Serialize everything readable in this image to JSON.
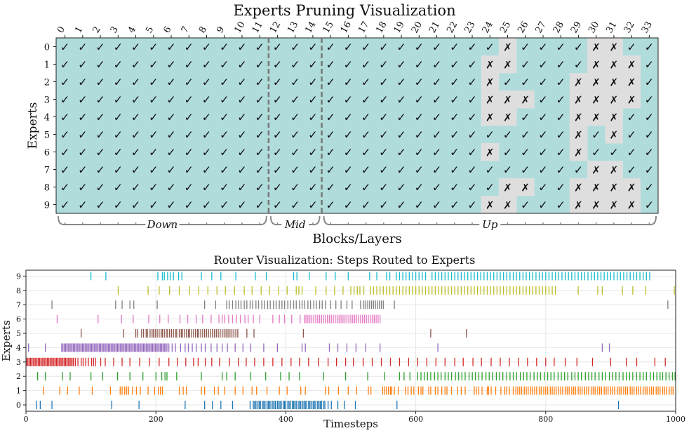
{
  "chart_data": [
    {
      "type": "heatmap",
      "title": "Experts Pruning Visualization",
      "xlabel": "Blocks/Layers",
      "ylabel": "Experts",
      "x": [
        0,
        1,
        2,
        3,
        4,
        5,
        6,
        7,
        8,
        9,
        10,
        11,
        12,
        13,
        14,
        15,
        16,
        17,
        18,
        19,
        20,
        21,
        22,
        23,
        24,
        25,
        26,
        27,
        28,
        29,
        30,
        31,
        32,
        33
      ],
      "y": [
        0,
        1,
        2,
        3,
        4,
        5,
        6,
        7,
        8,
        9
      ],
      "kept_symbol": "✓",
      "pruned_symbol": "✗",
      "groups": [
        {
          "label": "Down",
          "start": 0,
          "end": 11
        },
        {
          "label": "Mid",
          "start": 12,
          "end": 14
        },
        {
          "label": "Up",
          "start": 15,
          "end": 33
        }
      ],
      "pruned": [
        [
          25,
          30,
          31
        ],
        [
          24,
          25,
          30,
          31,
          32
        ],
        [
          24,
          29,
          30,
          31,
          32
        ],
        [
          24,
          25,
          26,
          29,
          30,
          31,
          32
        ],
        [
          24,
          25,
          29,
          30,
          31
        ],
        [
          29,
          31
        ],
        [
          24,
          29
        ],
        [
          30,
          31
        ],
        [
          25,
          26,
          29,
          30,
          31,
          32
        ],
        [
          24,
          25,
          29,
          30,
          31,
          32
        ]
      ],
      "colors": {
        "kept": "#b0dcdc",
        "pruned": "#dedede"
      }
    },
    {
      "type": "scatter",
      "marker": "vertical-line",
      "title": "Router Visualization: Steps Routed to Experts",
      "xlabel": "Timesteps",
      "ylabel": "Experts",
      "xlim": [
        0,
        1000
      ],
      "xticks": [
        0,
        200,
        400,
        600,
        800,
        1000
      ],
      "yticks": [
        0,
        1,
        2,
        3,
        4,
        5,
        6,
        7,
        8,
        9
      ],
      "grid": true,
      "series": [
        {
          "expert": 0,
          "color": "#1f77b4",
          "x": [
            16,
            22,
            40,
            132,
            174,
            245,
            275,
            287,
            300,
            318,
            345,
            350,
            352,
            354,
            357,
            359,
            361,
            364,
            366,
            368,
            371,
            373,
            375,
            377,
            380,
            382,
            384,
            387,
            389,
            391,
            393,
            396,
            398,
            400,
            403,
            405,
            407,
            410,
            412,
            414,
            416,
            419,
            421,
            423,
            426,
            428,
            430,
            432,
            435,
            437,
            439,
            442,
            444,
            446,
            449,
            451,
            453,
            455,
            458,
            460,
            465,
            470,
            480,
            490,
            507,
            571,
            912
          ]
        },
        {
          "expert": 1,
          "color": "#ff7f0e",
          "x": [
            27,
            52,
            64,
            82,
            102,
            130,
            145,
            148,
            152,
            155,
            158,
            164,
            170,
            176,
            188,
            198,
            204,
            207,
            210,
            236,
            242,
            247,
            270,
            275,
            290,
            296,
            306,
            322,
            334,
            348,
            355,
            371,
            390,
            402,
            423,
            430,
            461,
            466,
            481,
            496,
            509,
            527,
            531,
            549,
            552,
            555,
            558,
            561,
            563,
            567,
            573,
            584,
            588,
            593,
            597,
            604,
            608,
            611,
            620,
            623,
            630,
            634,
            640,
            645,
            648,
            655,
            664,
            670,
            676,
            690,
            693,
            697,
            702,
            710,
            712,
            716,
            723,
            731,
            737,
            740,
            744,
            750,
            754,
            757,
            760,
            763,
            767,
            770,
            773,
            777,
            780,
            783,
            786,
            790,
            793,
            797,
            800,
            803,
            807,
            810,
            813,
            816,
            820,
            823,
            826,
            830,
            833,
            836,
            840,
            843,
            846,
            850,
            853,
            856,
            860,
            863,
            866,
            870,
            873,
            876,
            880,
            883,
            886,
            890,
            893,
            896,
            900,
            903,
            906,
            910,
            913,
            916,
            920,
            923,
            926,
            930,
            933,
            936,
            940,
            943,
            946,
            950,
            953,
            956,
            960,
            963,
            966,
            970,
            973,
            976,
            980,
            983,
            986,
            990,
            993,
            996
          ]
        },
        {
          "expert": 2,
          "color": "#2ca02c",
          "x": [
            18,
            30,
            56,
            68,
            100,
            118,
            141,
            160,
            180,
            200,
            209,
            214,
            217,
            232,
            270,
            302,
            309,
            322,
            346,
            369,
            392,
            405,
            421,
            458,
            492,
            526,
            552,
            575,
            582,
            591,
            603,
            608,
            613,
            618,
            623,
            629,
            634,
            639,
            645,
            650,
            655,
            661,
            666,
            671,
            676,
            682,
            687,
            692,
            697,
            702,
            708,
            713,
            718,
            724,
            729,
            734,
            740,
            745,
            750,
            755,
            761,
            766,
            771,
            776,
            782,
            787,
            792,
            798,
            803,
            808,
            813,
            819,
            824,
            829,
            834,
            840,
            845,
            850,
            855,
            861,
            866,
            871,
            876,
            882,
            887,
            892,
            898,
            903,
            908,
            913,
            919,
            924,
            929,
            934,
            940,
            945,
            950,
            955,
            961,
            966,
            971,
            976,
            980,
            985,
            990,
            995,
            999
          ]
        },
        {
          "expert": 3,
          "color": "#d62728",
          "x": [
            1,
            3,
            5,
            7,
            9,
            11,
            13,
            15,
            17,
            19,
            21,
            23,
            25,
            27,
            29,
            31,
            33,
            35,
            37,
            39,
            41,
            43,
            45,
            47,
            49,
            51,
            53,
            55,
            57,
            59,
            61,
            63,
            65,
            67,
            69,
            71,
            73,
            76,
            80,
            85,
            88,
            92,
            96,
            101,
            104,
            107,
            115,
            122,
            135,
            148,
            160,
            175,
            190,
            205,
            220,
            233,
            246,
            258,
            265,
            276,
            286,
            298,
            313,
            327,
            339,
            352,
            366,
            380,
            394,
            408,
            421,
            435,
            450,
            465,
            478,
            492,
            504,
            519,
            533,
            547,
            561,
            575,
            589,
            603,
            617,
            631,
            645,
            660,
            673,
            688,
            701,
            716,
            730,
            744,
            758,
            772,
            786,
            800,
            813,
            830,
            848,
            872,
            900,
            924,
            940,
            968,
            984
          ]
        },
        {
          "expert": 4,
          "color": "#9467bd",
          "x": [
            4,
            30,
            55,
            57,
            59,
            61,
            63,
            65,
            67,
            69,
            71,
            73,
            75,
            77,
            79,
            81,
            83,
            85,
            87,
            89,
            91,
            93,
            95,
            97,
            99,
            101,
            103,
            105,
            107,
            109,
            111,
            113,
            115,
            117,
            119,
            121,
            123,
            125,
            127,
            129,
            131,
            133,
            135,
            137,
            139,
            141,
            143,
            145,
            147,
            149,
            151,
            153,
            155,
            157,
            159,
            161,
            163,
            165,
            167,
            169,
            171,
            173,
            175,
            177,
            179,
            181,
            183,
            185,
            187,
            189,
            191,
            193,
            195,
            197,
            199,
            201,
            203,
            205,
            207,
            209,
            211,
            213,
            215,
            217,
            220,
            225,
            230,
            238,
            245,
            250,
            256,
            262,
            270,
            276,
            285,
            294,
            302,
            310,
            322,
            334,
            346,
            366,
            387,
            425,
            430,
            467,
            480,
            494,
            508,
            523,
            545,
            634,
            887,
            898
          ]
        },
        {
          "expert": 5,
          "color": "#8c564b",
          "x": [
            85,
            150,
            169,
            172,
            178,
            181,
            185,
            187,
            191,
            194,
            196,
            199,
            202,
            205,
            208,
            210,
            213,
            216,
            218,
            221,
            224,
            227,
            230,
            232,
            236,
            239,
            241,
            244,
            247,
            250,
            252,
            255,
            258,
            261,
            264,
            266,
            269,
            272,
            275,
            278,
            281,
            284,
            287,
            290,
            293,
            296,
            299,
            302,
            305,
            308,
            311,
            314,
            317,
            320,
            323,
            326,
            340,
            351,
            427,
            623,
            678
          ]
        },
        {
          "expert": 6,
          "color": "#e377c2",
          "x": [
            48,
            111,
            147,
            165,
            189,
            206,
            219,
            237,
            249,
            262,
            272,
            285,
            297,
            302,
            306,
            312,
            318,
            324,
            330,
            337,
            342,
            350,
            360,
            380,
            390,
            398,
            409,
            422,
            429,
            431,
            434,
            437,
            440,
            443,
            446,
            449,
            452,
            455,
            458,
            461,
            464,
            467,
            470,
            473,
            476,
            479,
            482,
            485,
            488,
            491,
            494,
            497,
            500,
            503,
            506,
            509,
            512,
            515,
            518,
            521,
            524,
            527,
            530,
            533,
            536,
            539,
            542,
            545
          ]
        },
        {
          "expert": 7,
          "color": "#7f7f7f",
          "x": [
            40,
            138,
            148,
            160,
            166,
            202,
            275,
            292,
            309,
            313,
            318,
            323,
            327,
            331,
            336,
            340,
            345,
            349,
            354,
            358,
            363,
            367,
            372,
            376,
            381,
            385,
            390,
            394,
            398,
            403,
            407,
            412,
            416,
            421,
            425,
            429,
            434,
            438,
            443,
            447,
            452,
            456,
            461,
            469,
            477,
            485,
            494,
            502,
            515,
            520,
            523,
            526,
            529,
            532,
            535,
            538,
            541,
            544,
            547,
            550,
            567,
            988
          ]
        },
        {
          "expert": 8,
          "color": "#bcbd22",
          "x": [
            142,
            188,
            205,
            221,
            236,
            252,
            266,
            280,
            294,
            307,
            321,
            336,
            348,
            362,
            375,
            389,
            402,
            416,
            420,
            425,
            446,
            462,
            475,
            488,
            500,
            505,
            510,
            514,
            520,
            530,
            535,
            540,
            545,
            550,
            555,
            560,
            565,
            570,
            575,
            580,
            585,
            590,
            595,
            600,
            605,
            610,
            615,
            620,
            625,
            630,
            635,
            640,
            645,
            650,
            655,
            660,
            665,
            670,
            675,
            680,
            685,
            690,
            695,
            700,
            705,
            710,
            715,
            720,
            725,
            730,
            735,
            740,
            745,
            750,
            755,
            760,
            765,
            770,
            775,
            780,
            785,
            790,
            795,
            800,
            805,
            810,
            815,
            850,
            880,
            887,
            918,
            934,
            954,
            998
          ]
        },
        {
          "expert": 9,
          "color": "#17becf",
          "x": [
            100,
            123,
            203,
            210,
            213,
            218,
            222,
            227,
            235,
            240,
            270,
            286,
            300,
            323,
            353,
            370,
            412,
            417,
            436,
            462,
            476,
            496,
            529,
            540,
            555,
            560,
            570,
            575,
            580,
            585,
            590,
            595,
            600,
            605,
            610,
            615,
            625,
            630,
            635,
            640,
            645,
            650,
            655,
            660,
            665,
            670,
            675,
            680,
            685,
            690,
            695,
            700,
            705,
            710,
            715,
            720,
            725,
            730,
            735,
            740,
            745,
            750,
            755,
            760,
            765,
            770,
            775,
            780,
            785,
            790,
            795,
            800,
            805,
            810,
            815,
            820,
            825,
            830,
            835,
            840,
            845,
            850,
            855,
            860,
            865,
            870,
            875,
            880,
            885,
            890,
            895,
            900,
            905,
            910,
            915,
            920,
            925,
            930,
            935,
            940,
            945,
            950,
            955,
            960
          ]
        }
      ]
    }
  ]
}
